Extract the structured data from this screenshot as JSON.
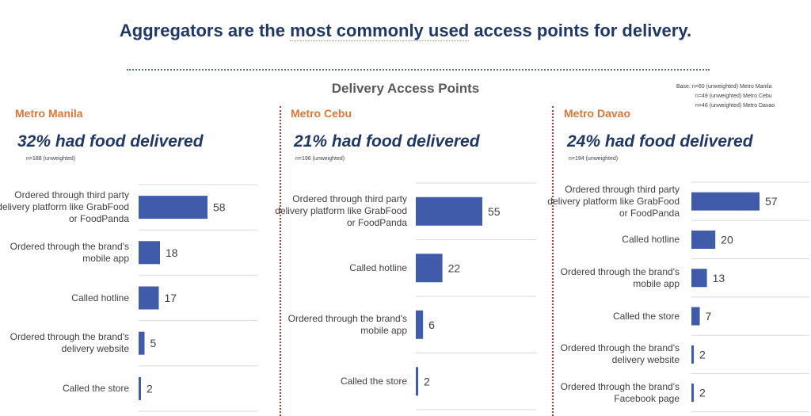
{
  "header": {
    "headline_pre": "Aggregators are the ",
    "headline_ul": "most commonly used",
    "headline_post": " access points for delivery.",
    "subtitle": "Delivery Access Points",
    "base_note": [
      "Base: n=60 (unweighted) Metro Manila",
      "n=49 (unweighted) Metro Cebu",
      "n=46 (unweighted) Metro Davao"
    ]
  },
  "colors": {
    "bar": "#3f5ba9",
    "region": "#d9773b",
    "headline": "#1f3864",
    "divider": "#c0392b"
  },
  "panels": [
    {
      "region": "Metro Manila",
      "headline": "32% had food delivered",
      "note": "n=188 (unweighted)"
    },
    {
      "region": "Metro Cebu",
      "headline": "21% had food delivered",
      "note": "n=196 (unweighted)"
    },
    {
      "region": "Metro Davao",
      "headline": "24% had food delivered",
      "note": "n=194 (unweighted)"
    }
  ],
  "chart_data": [
    {
      "type": "bar",
      "orientation": "horizontal",
      "title": "Metro Manila",
      "categories": [
        "Ordered through third party delivery platform like GrabFood or FoodPanda",
        "Ordered through the brand's mobile app",
        "Called hotline",
        "Ordered through the brand's delivery website",
        "Called the store"
      ],
      "values": [
        58,
        18,
        17,
        5,
        2
      ],
      "xlim": [
        0,
        58
      ]
    },
    {
      "type": "bar",
      "orientation": "horizontal",
      "title": "Metro Cebu",
      "categories": [
        "Ordered through third party delivery platform like GrabFood or FoodPanda",
        "Called hotline",
        "Ordered through the brand's mobile app",
        "Called the store"
      ],
      "values": [
        55,
        22,
        6,
        2
      ],
      "xlim": [
        0,
        55
      ]
    },
    {
      "type": "bar",
      "orientation": "horizontal",
      "title": "Metro Davao",
      "categories": [
        "Ordered through third party delivery platform like GrabFood or FoodPanda",
        "Called hotline",
        "Ordered through the brand's mobile app",
        "Called the store",
        "Ordered through the brand's delivery website",
        "Ordered through the brand's Facebook page"
      ],
      "values": [
        57,
        20,
        13,
        7,
        2,
        2
      ],
      "xlim": [
        0,
        57
      ]
    }
  ]
}
